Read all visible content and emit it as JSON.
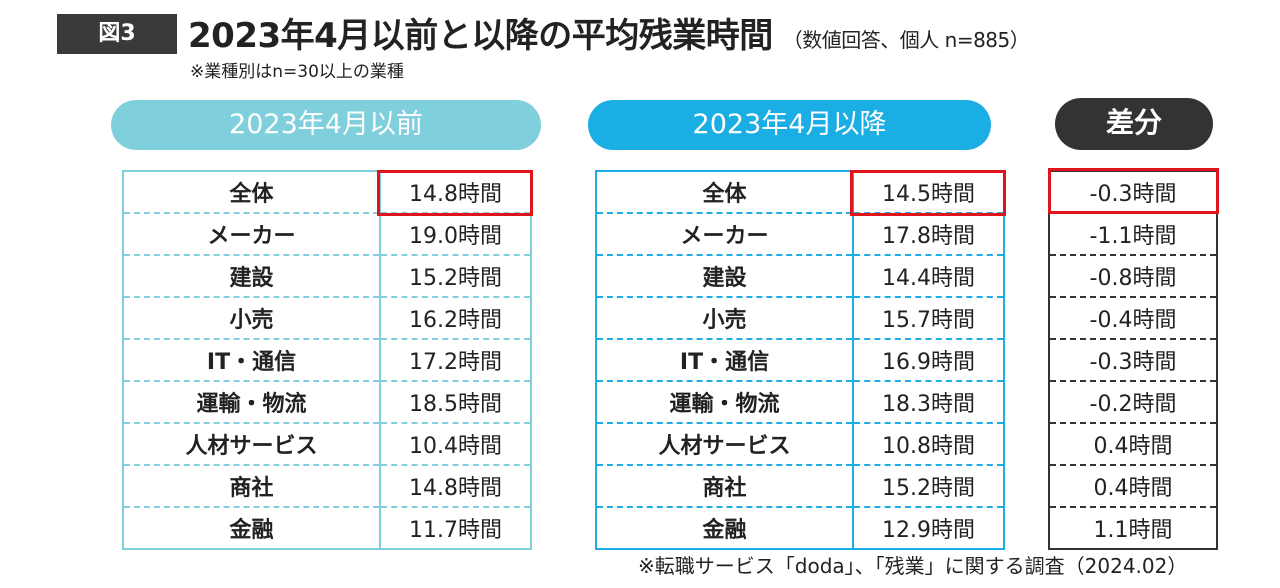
{
  "header": {
    "figure_label": "図3",
    "title": "2023年4月以前と以降の平均残業時間",
    "subtitle": "（数値回答、個人 n=885）",
    "note": "※業種別はn=30以上の業種"
  },
  "columns": {
    "before_label": "2023年4月以前",
    "after_label": "2023年4月以降",
    "diff_label": "差分"
  },
  "rows": [
    {
      "category": "全体",
      "before": "14.8時間",
      "after": "14.5時間",
      "diff": "-0.3時間"
    },
    {
      "category": "メーカー",
      "before": "19.0時間",
      "after": "17.8時間",
      "diff": "-1.1時間"
    },
    {
      "category": "建設",
      "before": "15.2時間",
      "after": "14.4時間",
      "diff": "-0.8時間"
    },
    {
      "category": "小売",
      "before": "16.2時間",
      "after": "15.7時間",
      "diff": "-0.4時間"
    },
    {
      "category": "IT・通信",
      "before": "17.2時間",
      "after": "16.9時間",
      "diff": "-0.3時間"
    },
    {
      "category": "運輸・物流",
      "before": "18.5時間",
      "after": "18.3時間",
      "diff": "-0.2時間"
    },
    {
      "category": "人材サービス",
      "before": "10.4時間",
      "after": "10.8時間",
      "diff": "0.4時間"
    },
    {
      "category": "商社",
      "before": "14.8時間",
      "after": "15.2時間",
      "diff": "0.4時間"
    },
    {
      "category": "金融",
      "before": "11.7時間",
      "after": "12.9時間",
      "diff": "1.1時間"
    }
  ],
  "source": "※転職サービス「doda」、「残業」に関する調査（2024.02）",
  "colors": {
    "before": "#7fd0dc",
    "after": "#1aaee4",
    "diff": "#333333",
    "highlight": "#e0151c"
  }
}
